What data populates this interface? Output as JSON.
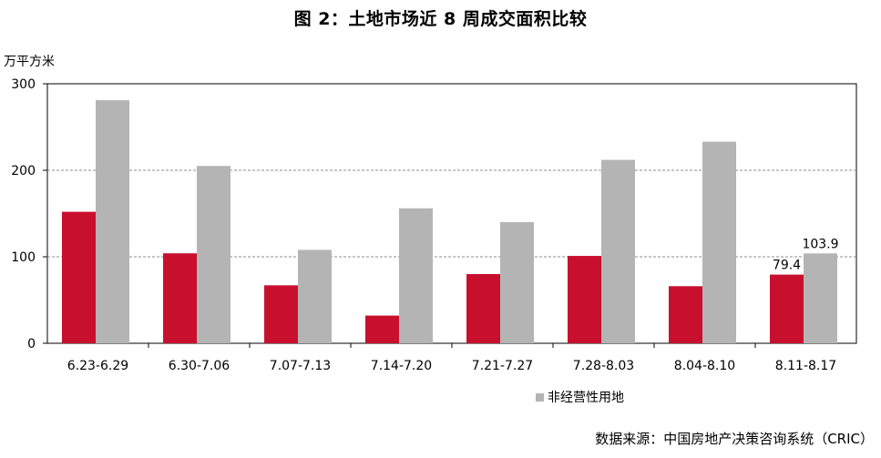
{
  "figure_title": "图 2：土地市场近 8 周成交面积比较",
  "source_note": "数据来源：中国房地产决策咨询系统（CRIC）",
  "colors": {
    "series_a": "#c8102e",
    "series_b": "#b4b4b4"
  },
  "chart_data": {
    "type": "bar",
    "title": "",
    "xlabel": "",
    "ylabel": "万平方米",
    "ylim": [
      0,
      300
    ],
    "yticks": [
      0,
      100,
      200,
      300
    ],
    "grid": true,
    "legend_position": "bottom",
    "categories": [
      "6.23-6.29",
      "6.30-7.06",
      "7.07-7.13",
      "7.14-7.20",
      "7.21-7.27",
      "7.28-8.03",
      "8.04-8.10",
      "8.11-8.17"
    ],
    "series": [
      {
        "name": "",
        "values": [
          152,
          104,
          67,
          32,
          80,
          101,
          66,
          79.4
        ],
        "labels": [
          "",
          "",
          "",
          "",
          "",
          "",
          "",
          "79.4"
        ]
      },
      {
        "name": "非经营性用地",
        "values": [
          281,
          205,
          108,
          156,
          140,
          212,
          233,
          103.9
        ],
        "labels": [
          "",
          "",
          "",
          "",
          "",
          "",
          "",
          "103.9"
        ]
      }
    ]
  }
}
